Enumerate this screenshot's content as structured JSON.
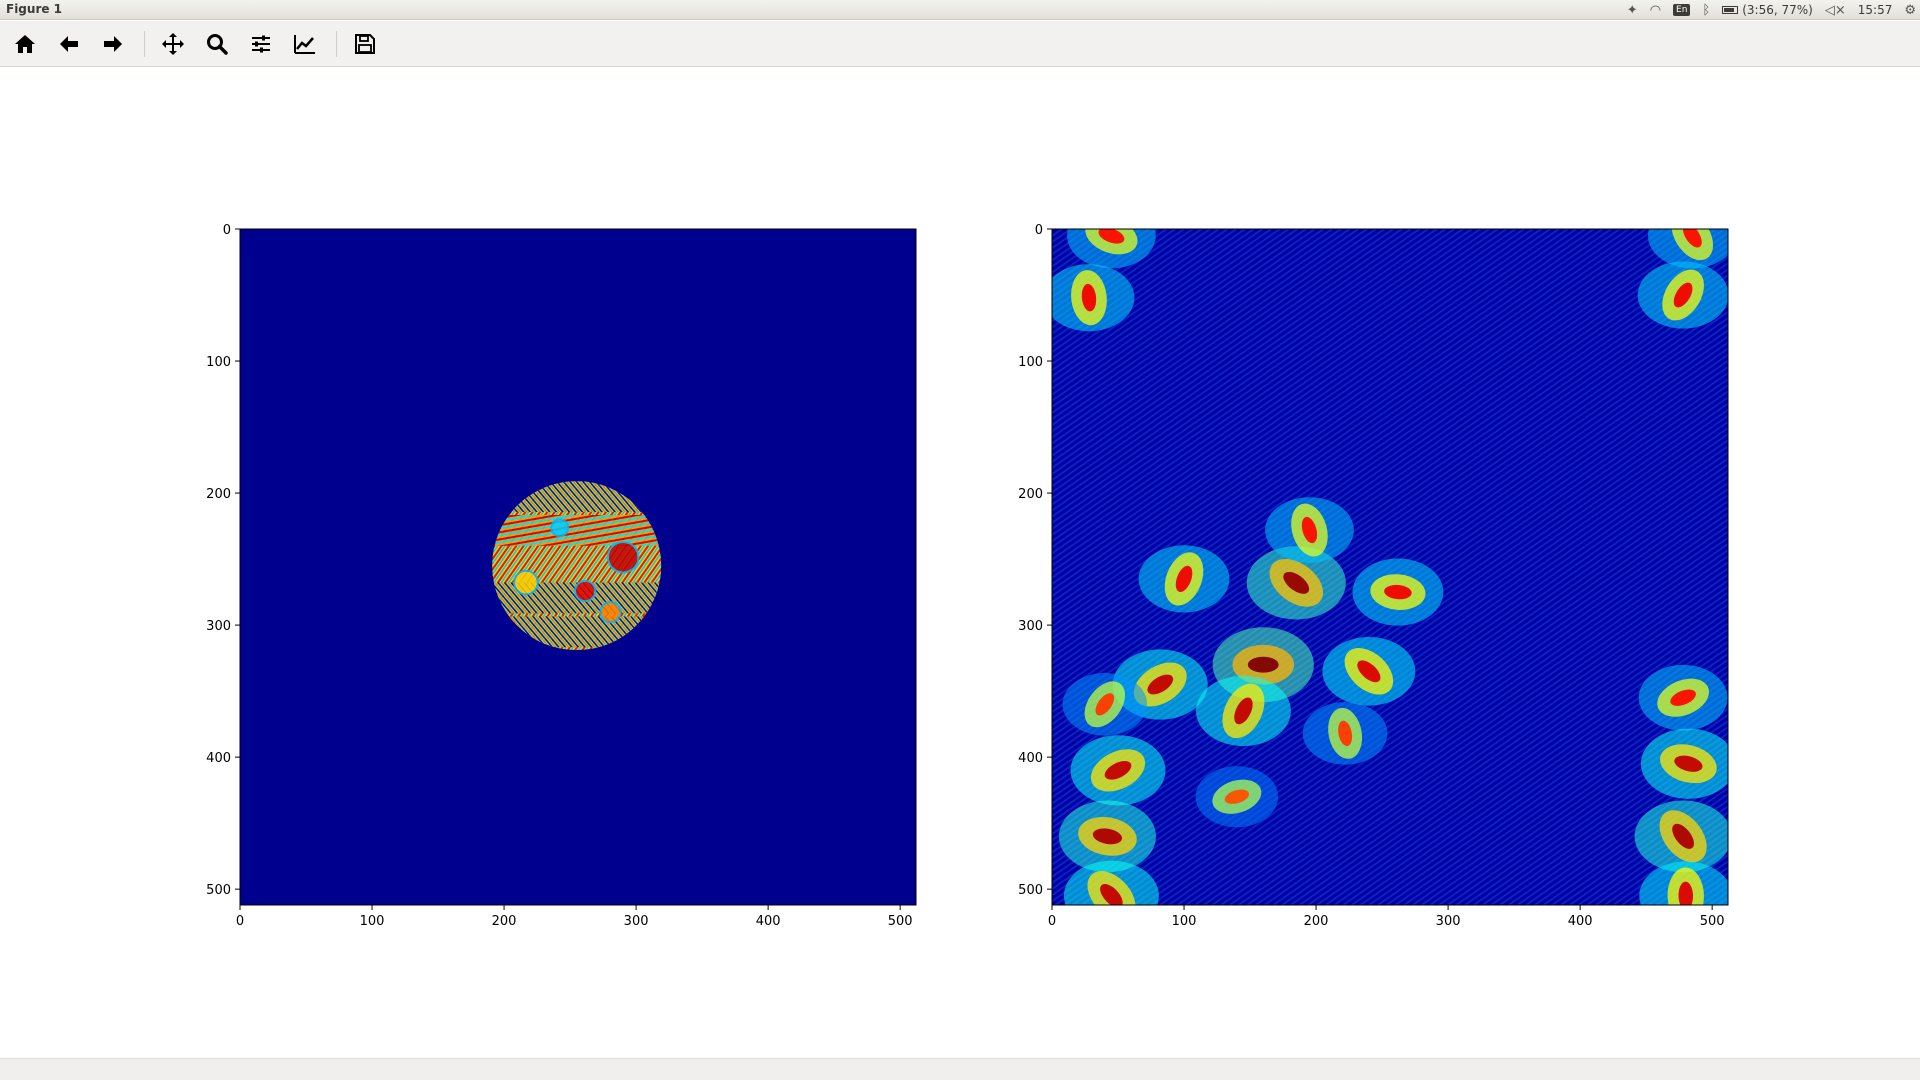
{
  "window": {
    "title": "Figure 1"
  },
  "system_tray": {
    "keyboard_layout": "En",
    "battery": "(3:56, 77%)",
    "clock": "15:57"
  },
  "toolbar": {
    "buttons": [
      {
        "name": "home-button",
        "icon": "home-icon"
      },
      {
        "name": "back-button",
        "icon": "arrow-left-icon"
      },
      {
        "name": "forward-button",
        "icon": "arrow-right-icon"
      },
      {
        "name": "pan-button",
        "icon": "move-icon"
      },
      {
        "name": "zoom-button",
        "icon": "magnifier-icon"
      },
      {
        "name": "configure-subplots-button",
        "icon": "sliders-icon"
      },
      {
        "name": "edit-axis-button",
        "icon": "line-chart-icon"
      },
      {
        "name": "save-button",
        "icon": "floppy-disk-icon"
      }
    ]
  },
  "chart_data": [
    {
      "type": "heatmap",
      "colormap": "jet",
      "description_of_values": "image 512x512; uniform minimum (dark blue) everywhere except a disk of radius ~64 centered near (255,255) filled with oscillating random-phase pattern",
      "xlim": [
        0,
        512
      ],
      "ylim": [
        512,
        0
      ],
      "xticks": [
        "0",
        "100",
        "200",
        "300",
        "400",
        "500"
      ],
      "yticks": [
        "0",
        "100",
        "200",
        "300",
        "400",
        "500"
      ],
      "features": [
        {
          "kind": "disk",
          "cx": 255,
          "cy": 255,
          "r": 64
        }
      ]
    },
    {
      "type": "heatmap",
      "colormap": "jet",
      "description_of_values": "image 512x512; speckle/fringe intensity pattern with bright spots",
      "xlim": [
        0,
        512
      ],
      "ylim": [
        512,
        0
      ],
      "xticks": [
        "0",
        "100",
        "200",
        "300",
        "400",
        "500"
      ],
      "yticks": [
        "0",
        "100",
        "200",
        "300",
        "400",
        "500"
      ],
      "features": [
        {
          "kind": "spot",
          "x": 160,
          "y": 330,
          "intensity": 1.0
        },
        {
          "kind": "spot",
          "x": 185,
          "y": 268,
          "intensity": 0.95
        },
        {
          "kind": "spot",
          "x": 195,
          "y": 228,
          "intensity": 0.7
        },
        {
          "kind": "spot",
          "x": 100,
          "y": 265,
          "intensity": 0.75
        },
        {
          "kind": "spot",
          "x": 82,
          "y": 345,
          "intensity": 0.85
        },
        {
          "kind": "spot",
          "x": 262,
          "y": 275,
          "intensity": 0.75
        },
        {
          "kind": "spot",
          "x": 240,
          "y": 335,
          "intensity": 0.8
        },
        {
          "kind": "spot",
          "x": 222,
          "y": 382,
          "intensity": 0.6
        },
        {
          "kind": "spot",
          "x": 145,
          "y": 365,
          "intensity": 0.85
        },
        {
          "kind": "spot",
          "x": 50,
          "y": 410,
          "intensity": 0.85
        },
        {
          "kind": "spot",
          "x": 42,
          "y": 460,
          "intensity": 0.9
        },
        {
          "kind": "spot",
          "x": 45,
          "y": 505,
          "intensity": 0.85
        },
        {
          "kind": "spot",
          "x": 28,
          "y": 52,
          "intensity": 0.75
        },
        {
          "kind": "spot",
          "x": 478,
          "y": 50,
          "intensity": 0.75
        },
        {
          "kind": "spot",
          "x": 478,
          "y": 355,
          "intensity": 0.7
        },
        {
          "kind": "spot",
          "x": 482,
          "y": 405,
          "intensity": 0.85
        },
        {
          "kind": "spot",
          "x": 478,
          "y": 460,
          "intensity": 0.9
        },
        {
          "kind": "spot",
          "x": 480,
          "y": 505,
          "intensity": 0.8
        },
        {
          "kind": "spot",
          "x": 40,
          "y": 360,
          "intensity": 0.6
        },
        {
          "kind": "spot",
          "x": 140,
          "y": 430,
          "intensity": 0.55
        },
        {
          "kind": "spot",
          "x": 45,
          "y": 5,
          "intensity": 0.7
        },
        {
          "kind": "spot",
          "x": 485,
          "y": 5,
          "intensity": 0.7
        }
      ]
    }
  ]
}
